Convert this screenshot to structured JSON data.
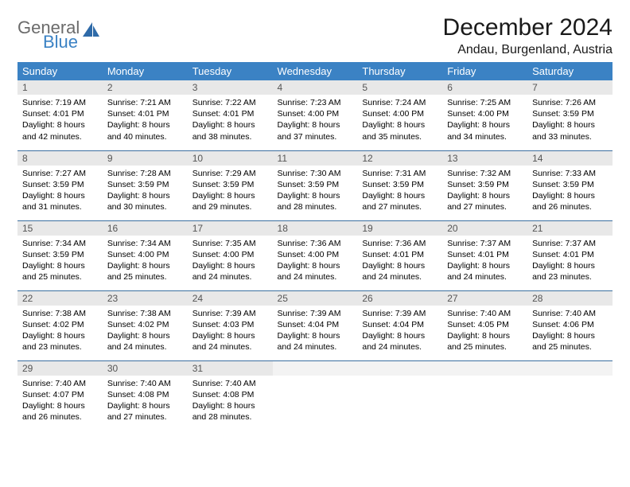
{
  "logo": {
    "general": "General",
    "blue": "Blue"
  },
  "title": "December 2024",
  "location": "Andau, Burgenland, Austria",
  "colors": {
    "header_bg": "#3b82c4",
    "header_text": "#ffffff",
    "daynum_bg": "#e8e8e8",
    "daynum_text": "#555555",
    "rule": "#3b6fa0",
    "logo_gray": "#6b6b6b",
    "logo_blue": "#3b82c4"
  },
  "weekdays": [
    "Sunday",
    "Monday",
    "Tuesday",
    "Wednesday",
    "Thursday",
    "Friday",
    "Saturday"
  ],
  "days": [
    {
      "n": "1",
      "sr": "7:19 AM",
      "ss": "4:01 PM",
      "dl": "8 hours and 42 minutes."
    },
    {
      "n": "2",
      "sr": "7:21 AM",
      "ss": "4:01 PM",
      "dl": "8 hours and 40 minutes."
    },
    {
      "n": "3",
      "sr": "7:22 AM",
      "ss": "4:01 PM",
      "dl": "8 hours and 38 minutes."
    },
    {
      "n": "4",
      "sr": "7:23 AM",
      "ss": "4:00 PM",
      "dl": "8 hours and 37 minutes."
    },
    {
      "n": "5",
      "sr": "7:24 AM",
      "ss": "4:00 PM",
      "dl": "8 hours and 35 minutes."
    },
    {
      "n": "6",
      "sr": "7:25 AM",
      "ss": "4:00 PM",
      "dl": "8 hours and 34 minutes."
    },
    {
      "n": "7",
      "sr": "7:26 AM",
      "ss": "3:59 PM",
      "dl": "8 hours and 33 minutes."
    },
    {
      "n": "8",
      "sr": "7:27 AM",
      "ss": "3:59 PM",
      "dl": "8 hours and 31 minutes."
    },
    {
      "n": "9",
      "sr": "7:28 AM",
      "ss": "3:59 PM",
      "dl": "8 hours and 30 minutes."
    },
    {
      "n": "10",
      "sr": "7:29 AM",
      "ss": "3:59 PM",
      "dl": "8 hours and 29 minutes."
    },
    {
      "n": "11",
      "sr": "7:30 AM",
      "ss": "3:59 PM",
      "dl": "8 hours and 28 minutes."
    },
    {
      "n": "12",
      "sr": "7:31 AM",
      "ss": "3:59 PM",
      "dl": "8 hours and 27 minutes."
    },
    {
      "n": "13",
      "sr": "7:32 AM",
      "ss": "3:59 PM",
      "dl": "8 hours and 27 minutes."
    },
    {
      "n": "14",
      "sr": "7:33 AM",
      "ss": "3:59 PM",
      "dl": "8 hours and 26 minutes."
    },
    {
      "n": "15",
      "sr": "7:34 AM",
      "ss": "3:59 PM",
      "dl": "8 hours and 25 minutes."
    },
    {
      "n": "16",
      "sr": "7:34 AM",
      "ss": "4:00 PM",
      "dl": "8 hours and 25 minutes."
    },
    {
      "n": "17",
      "sr": "7:35 AM",
      "ss": "4:00 PM",
      "dl": "8 hours and 24 minutes."
    },
    {
      "n": "18",
      "sr": "7:36 AM",
      "ss": "4:00 PM",
      "dl": "8 hours and 24 minutes."
    },
    {
      "n": "19",
      "sr": "7:36 AM",
      "ss": "4:01 PM",
      "dl": "8 hours and 24 minutes."
    },
    {
      "n": "20",
      "sr": "7:37 AM",
      "ss": "4:01 PM",
      "dl": "8 hours and 24 minutes."
    },
    {
      "n": "21",
      "sr": "7:37 AM",
      "ss": "4:01 PM",
      "dl": "8 hours and 23 minutes."
    },
    {
      "n": "22",
      "sr": "7:38 AM",
      "ss": "4:02 PM",
      "dl": "8 hours and 23 minutes."
    },
    {
      "n": "23",
      "sr": "7:38 AM",
      "ss": "4:02 PM",
      "dl": "8 hours and 24 minutes."
    },
    {
      "n": "24",
      "sr": "7:39 AM",
      "ss": "4:03 PM",
      "dl": "8 hours and 24 minutes."
    },
    {
      "n": "25",
      "sr": "7:39 AM",
      "ss": "4:04 PM",
      "dl": "8 hours and 24 minutes."
    },
    {
      "n": "26",
      "sr": "7:39 AM",
      "ss": "4:04 PM",
      "dl": "8 hours and 24 minutes."
    },
    {
      "n": "27",
      "sr": "7:40 AM",
      "ss": "4:05 PM",
      "dl": "8 hours and 25 minutes."
    },
    {
      "n": "28",
      "sr": "7:40 AM",
      "ss": "4:06 PM",
      "dl": "8 hours and 25 minutes."
    },
    {
      "n": "29",
      "sr": "7:40 AM",
      "ss": "4:07 PM",
      "dl": "8 hours and 26 minutes."
    },
    {
      "n": "30",
      "sr": "7:40 AM",
      "ss": "4:08 PM",
      "dl": "8 hours and 27 minutes."
    },
    {
      "n": "31",
      "sr": "7:40 AM",
      "ss": "4:08 PM",
      "dl": "8 hours and 28 minutes."
    }
  ],
  "labels": {
    "sunrise": "Sunrise:",
    "sunset": "Sunset:",
    "daylight": "Daylight:"
  }
}
